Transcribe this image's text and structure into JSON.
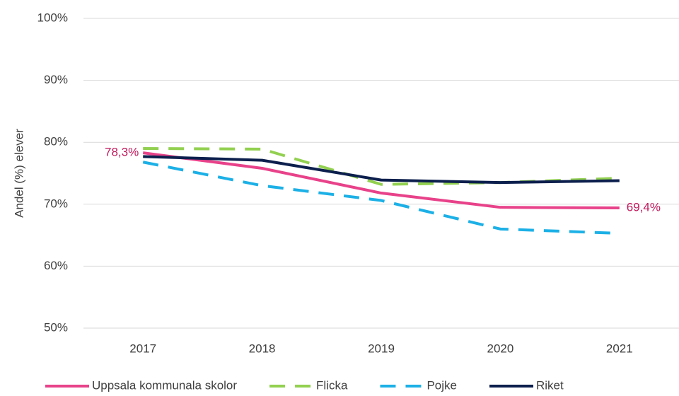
{
  "chart_data": {
    "type": "line",
    "y_label": "Andel (%) elever",
    "categories": [
      "2017",
      "2018",
      "2019",
      "2020",
      "2021"
    ],
    "series": [
      {
        "name": "Uppsala kommunala skolor",
        "color": "#e8428a",
        "dash": false,
        "values": [
          78.3,
          75.8,
          71.8,
          69.5,
          69.4
        ],
        "value_labels": [
          "78,3%",
          null,
          null,
          null,
          "69,4%"
        ],
        "label_color": "#c2185b"
      },
      {
        "name": "Flicka",
        "color": "#92d050",
        "dash": true,
        "values": [
          79.0,
          78.9,
          73.2,
          73.5,
          74.2
        ]
      },
      {
        "name": "Pojke",
        "color": "#1cb0e6",
        "dash": true,
        "values": [
          76.8,
          73.0,
          70.6,
          66.0,
          65.3
        ]
      },
      {
        "name": "Riket",
        "color": "#0c1f4d",
        "dash": false,
        "values": [
          77.7,
          77.1,
          73.9,
          73.5,
          73.8
        ]
      }
    ],
    "ylim": [
      50,
      100
    ],
    "yticks": [
      {
        "value": 50,
        "label": "50%"
      },
      {
        "value": 60,
        "label": "60%"
      },
      {
        "value": 70,
        "label": "70%"
      },
      {
        "value": 80,
        "label": "80%"
      },
      {
        "value": 90,
        "label": "90%"
      },
      {
        "value": 100,
        "label": "100%"
      }
    ],
    "grid": true,
    "legend": "bottom"
  }
}
